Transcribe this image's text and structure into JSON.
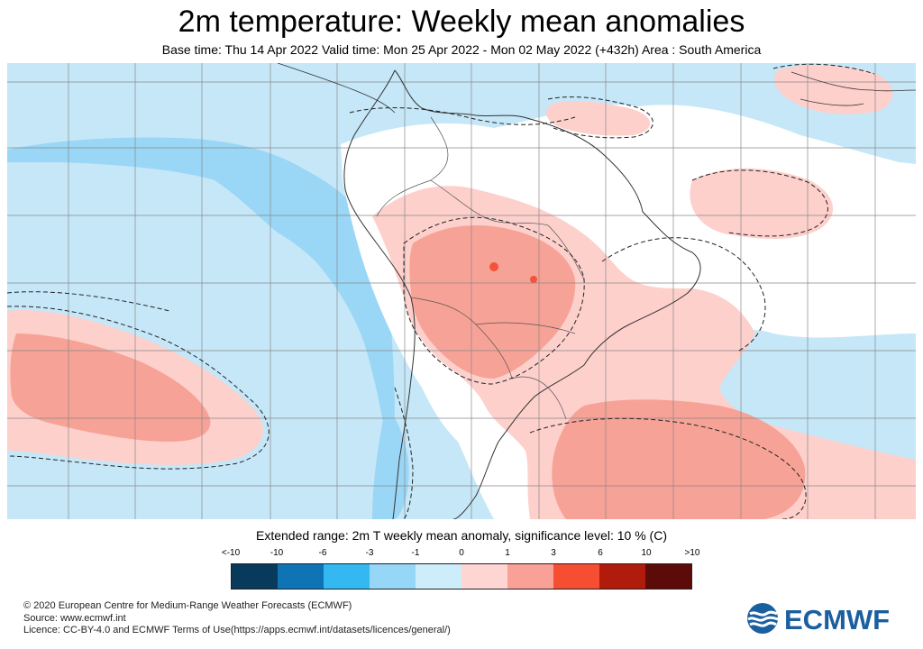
{
  "title": "2m temperature: Weekly mean anomalies",
  "subtitle": "Base time: Thu 14 Apr 2022 Valid time: Mon 25 Apr 2022 - Mon 02 May 2022 (+432h) Area : South America",
  "legend": {
    "title": "Extended range: 2m T weekly mean anomaly, significance level: 10 % (C)",
    "labels": [
      "<-10",
      "-10",
      "-6",
      "-3",
      "-1",
      "0",
      "1",
      "3",
      "6",
      "10",
      ">10"
    ],
    "colors": [
      "#083a5c",
      "#0f74b5",
      "#33b8f2",
      "#96d6f6",
      "#cdedfb",
      "#fdd5d2",
      "#f9a196",
      "#f54e33",
      "#b01b0c",
      "#5d0b08"
    ]
  },
  "colors": {
    "ocean_cool": "#c5e7f8",
    "cool_strong": "#9ad6f5",
    "warm_light": "#fdd0cc",
    "warm_medium": "#f7a296",
    "warm_strong": "#f4523a",
    "neutral": "#ffffff",
    "ecmwf_blue": "#1a5f9e"
  },
  "credits": {
    "line1": "© 2020 European Centre for Medium-Range Weather Forecasts (ECMWF)",
    "line2": "Source: www.ecmwf.int",
    "line3": "Licence: CC-BY-4.0 and ECMWF Terms of Use(https://apps.ecmwf.int/datasets/licences/general/)"
  },
  "logo": {
    "text": "ECMWF"
  }
}
